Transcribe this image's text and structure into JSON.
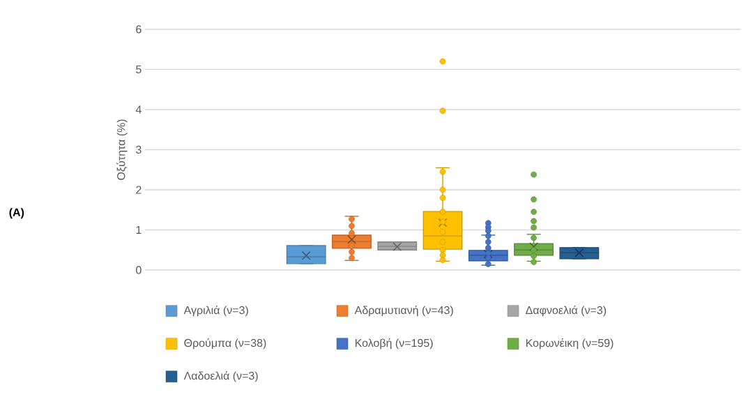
{
  "chart_data": {
    "type": "box",
    "ylabel": "Οξύτητα (%)",
    "annotations": [
      "(A)"
    ],
    "categories": [
      null
    ],
    "ylim": [
      0,
      6
    ],
    "yticks": [
      0,
      1,
      2,
      3,
      4,
      5,
      6
    ],
    "grid": "y",
    "legend": "bottom",
    "series": [
      {
        "name": "Αγριλιά (ν=3)",
        "color": "#5b9bd5",
        "boxes": [
          {
            "low": 0.16,
            "q1": 0.16,
            "median": 0.33,
            "q3": 0.61,
            "high": 0.61,
            "mean": 0.36
          }
        ]
      },
      {
        "name": "Αδραμυτιανή (ν=43)",
        "color": "#ed7d31",
        "boxes": [
          {
            "low": 0.24,
            "q1": 0.54,
            "median": 0.71,
            "q3": 0.87,
            "high": 1.34,
            "mean": 0.76,
            "outliers": [
              1.27,
              1.1,
              0.92,
              0.6,
              0.45,
              0.3
            ]
          }
        ]
      },
      {
        "name": "Δαφνοελιά (ν=3)",
        "color": "#a5a5a5",
        "boxes": [
          {
            "low": 0.5,
            "q1": 0.5,
            "median": 0.59,
            "q3": 0.7,
            "high": 0.7,
            "mean": 0.58
          }
        ]
      },
      {
        "name": "Θρούμπα (ν=38)",
        "color": "#ffc000",
        "boxes": [
          {
            "low": 0.22,
            "q1": 0.52,
            "median": 0.85,
            "q3": 1.46,
            "high": 2.55,
            "mean": 1.18,
            "outliers": [
              5.2,
              3.97,
              2.45,
              2.0,
              1.8,
              1.45,
              1.2,
              0.95,
              0.7,
              0.5,
              0.37,
              0.25
            ]
          }
        ]
      },
      {
        "name": "Κολοβή (ν=195)",
        "color": "#4472c4",
        "boxes": [
          {
            "low": 0.12,
            "q1": 0.23,
            "median": 0.37,
            "q3": 0.49,
            "high": 0.87,
            "mean": 0.4,
            "outliers": [
              1.17,
              1.07,
              0.98,
              0.85,
              0.7,
              0.55,
              0.42,
              0.3,
              0.15
            ]
          }
        ]
      },
      {
        "name": "Κορωνέικη (ν=59)",
        "color": "#70ad47",
        "boxes": [
          {
            "low": 0.22,
            "q1": 0.37,
            "median": 0.5,
            "q3": 0.66,
            "high": 0.89,
            "mean": 0.58,
            "outliers": [
              2.38,
              1.76,
              1.45,
              1.22,
              1.06,
              0.8,
              0.5,
              0.35,
              0.2
            ]
          }
        ]
      },
      {
        "name": "Λαδοελιά (ν=3)",
        "color": "#255e91",
        "boxes": [
          {
            "low": 0.28,
            "q1": 0.28,
            "median": 0.43,
            "q3": 0.56,
            "high": 0.56,
            "mean": 0.43
          }
        ]
      }
    ]
  }
}
